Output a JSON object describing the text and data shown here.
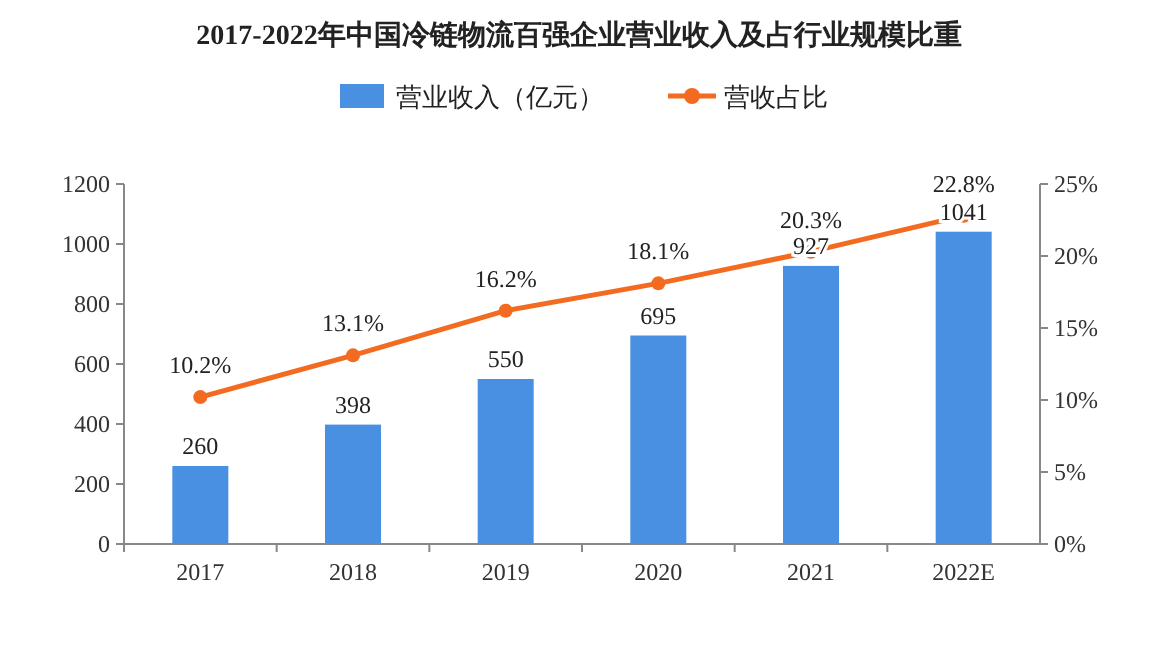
{
  "chart_data": {
    "type": "bar",
    "title": "2017-2022年中国冷链物流百强企业营业收入及占行业规模比重",
    "categories": [
      "2017",
      "2018",
      "2019",
      "2020",
      "2021",
      "2022E"
    ],
    "series": [
      {
        "name": "营业收入（亿元）",
        "color": "#4a90e2",
        "values": [
          260,
          398,
          550,
          695,
          927,
          1041
        ],
        "value_labels": [
          "260",
          "398",
          "550",
          "695",
          "927",
          "1041"
        ]
      },
      {
        "name": "营收占比",
        "type": "line",
        "axis": "y2",
        "color": "#f26b21",
        "marker": "circle",
        "values": [
          10.2,
          13.1,
          16.2,
          18.1,
          20.3,
          22.8
        ],
        "value_labels": [
          "10.2%",
          "13.1%",
          "16.2%",
          "18.1%",
          "20.3%",
          "22.8%"
        ]
      }
    ],
    "ylim": [
      0,
      1200
    ],
    "yticks": [
      0,
      200,
      400,
      600,
      800,
      1000,
      1200
    ],
    "y2lim": [
      0,
      25
    ],
    "y2ticks": [
      {
        "value": 0,
        "label": "0%"
      },
      {
        "value": 5,
        "label": "5%"
      },
      {
        "value": 10,
        "label": "10%"
      },
      {
        "value": 15,
        "label": "15%"
      },
      {
        "value": 20,
        "label": "20%"
      },
      {
        "value": 25,
        "label": "25%"
      }
    ],
    "legend": "top"
  }
}
